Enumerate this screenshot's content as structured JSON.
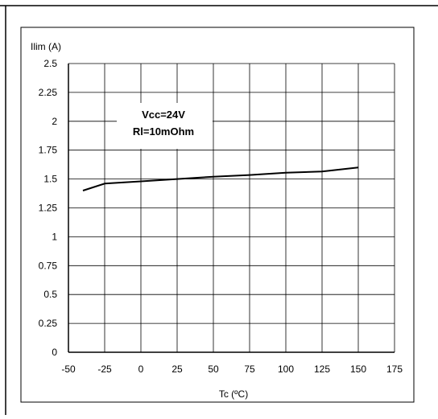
{
  "chart_data": {
    "type": "line",
    "ylabel": "Ilim (A)",
    "xlabel": "Tc (ºC)",
    "annotation": [
      "Vcc=24V",
      "Rl=10mOhm"
    ],
    "xlim": [
      -50,
      175
    ],
    "ylim": [
      0,
      2.5
    ],
    "x_ticks": [
      -50,
      -25,
      0,
      25,
      50,
      75,
      100,
      125,
      150,
      175
    ],
    "x_tick_labels": [
      "-50",
      "-25",
      "0",
      "25",
      "50",
      "75",
      "100",
      "125",
      "150",
      "175"
    ],
    "y_ticks": [
      0,
      0.25,
      0.5,
      0.75,
      1,
      1.25,
      1.5,
      1.75,
      2,
      2.25,
      2.5
    ],
    "y_tick_labels": [
      "0",
      "0.25",
      "0.5",
      "0.75",
      "1",
      "1.25",
      "1.5",
      "1.75",
      "2",
      "2.25",
      "2.5"
    ],
    "grid": true,
    "series": [
      {
        "color": "#000000",
        "points": [
          [
            -40,
            1.4
          ],
          [
            -25,
            1.46
          ],
          [
            0,
            1.48
          ],
          [
            25,
            1.5
          ],
          [
            50,
            1.52
          ],
          [
            75,
            1.535
          ],
          [
            100,
            1.555
          ],
          [
            125,
            1.565
          ],
          [
            150,
            1.6
          ]
        ]
      }
    ]
  }
}
